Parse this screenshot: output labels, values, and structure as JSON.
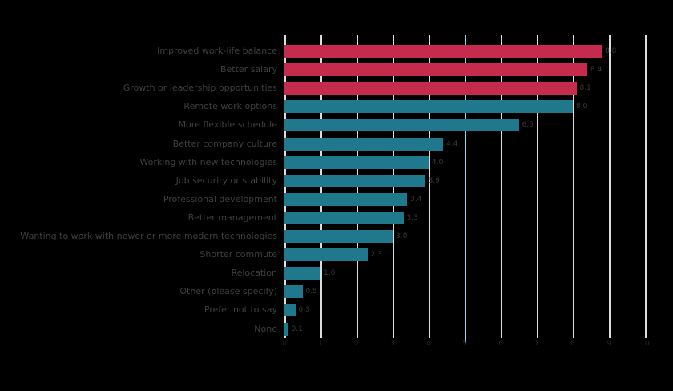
{
  "chart_data": {
    "type": "bar",
    "orientation": "horizontal",
    "title": "",
    "xlabel": "",
    "ylabel": "",
    "xlim": [
      0,
      10
    ],
    "xticks": [
      0,
      1,
      2,
      3,
      4,
      5,
      6,
      7,
      8,
      9,
      10
    ],
    "grid": true,
    "reference_line": {
      "x": 5,
      "color": "#8fd8ea"
    },
    "highlight_count": 3,
    "colors": {
      "highlight": "#c42b4d",
      "default": "#20788c",
      "background": "#000000",
      "gridline": "#dcdcdc"
    },
    "categories": [
      "Improved work-life balance",
      "Better salary",
      "Growth or leadership opportunities",
      "Remote work options",
      "More flexible schedule",
      "Better company culture",
      "Working with new technologies",
      "Job security or stability",
      "Professional development",
      "Better management",
      "Wanting to work with newer or more modern technologies",
      "Shorter commute",
      "Relocation",
      "Other (please specify)",
      "Prefer not to say",
      "None"
    ],
    "values": [
      8.8,
      8.4,
      8.1,
      8.0,
      6.5,
      4.4,
      4.0,
      3.9,
      3.4,
      3.3,
      3.0,
      2.3,
      1.0,
      0.5,
      0.3,
      0.1
    ],
    "value_labels": [
      "8.8",
      "8.4",
      "8.1",
      "8.0",
      "6.5",
      "4.4",
      "4.0",
      "3.9",
      "3.4",
      "3.3",
      "3.0",
      "2.3",
      "1.0",
      "0.5",
      "0.3",
      "0.1"
    ]
  }
}
